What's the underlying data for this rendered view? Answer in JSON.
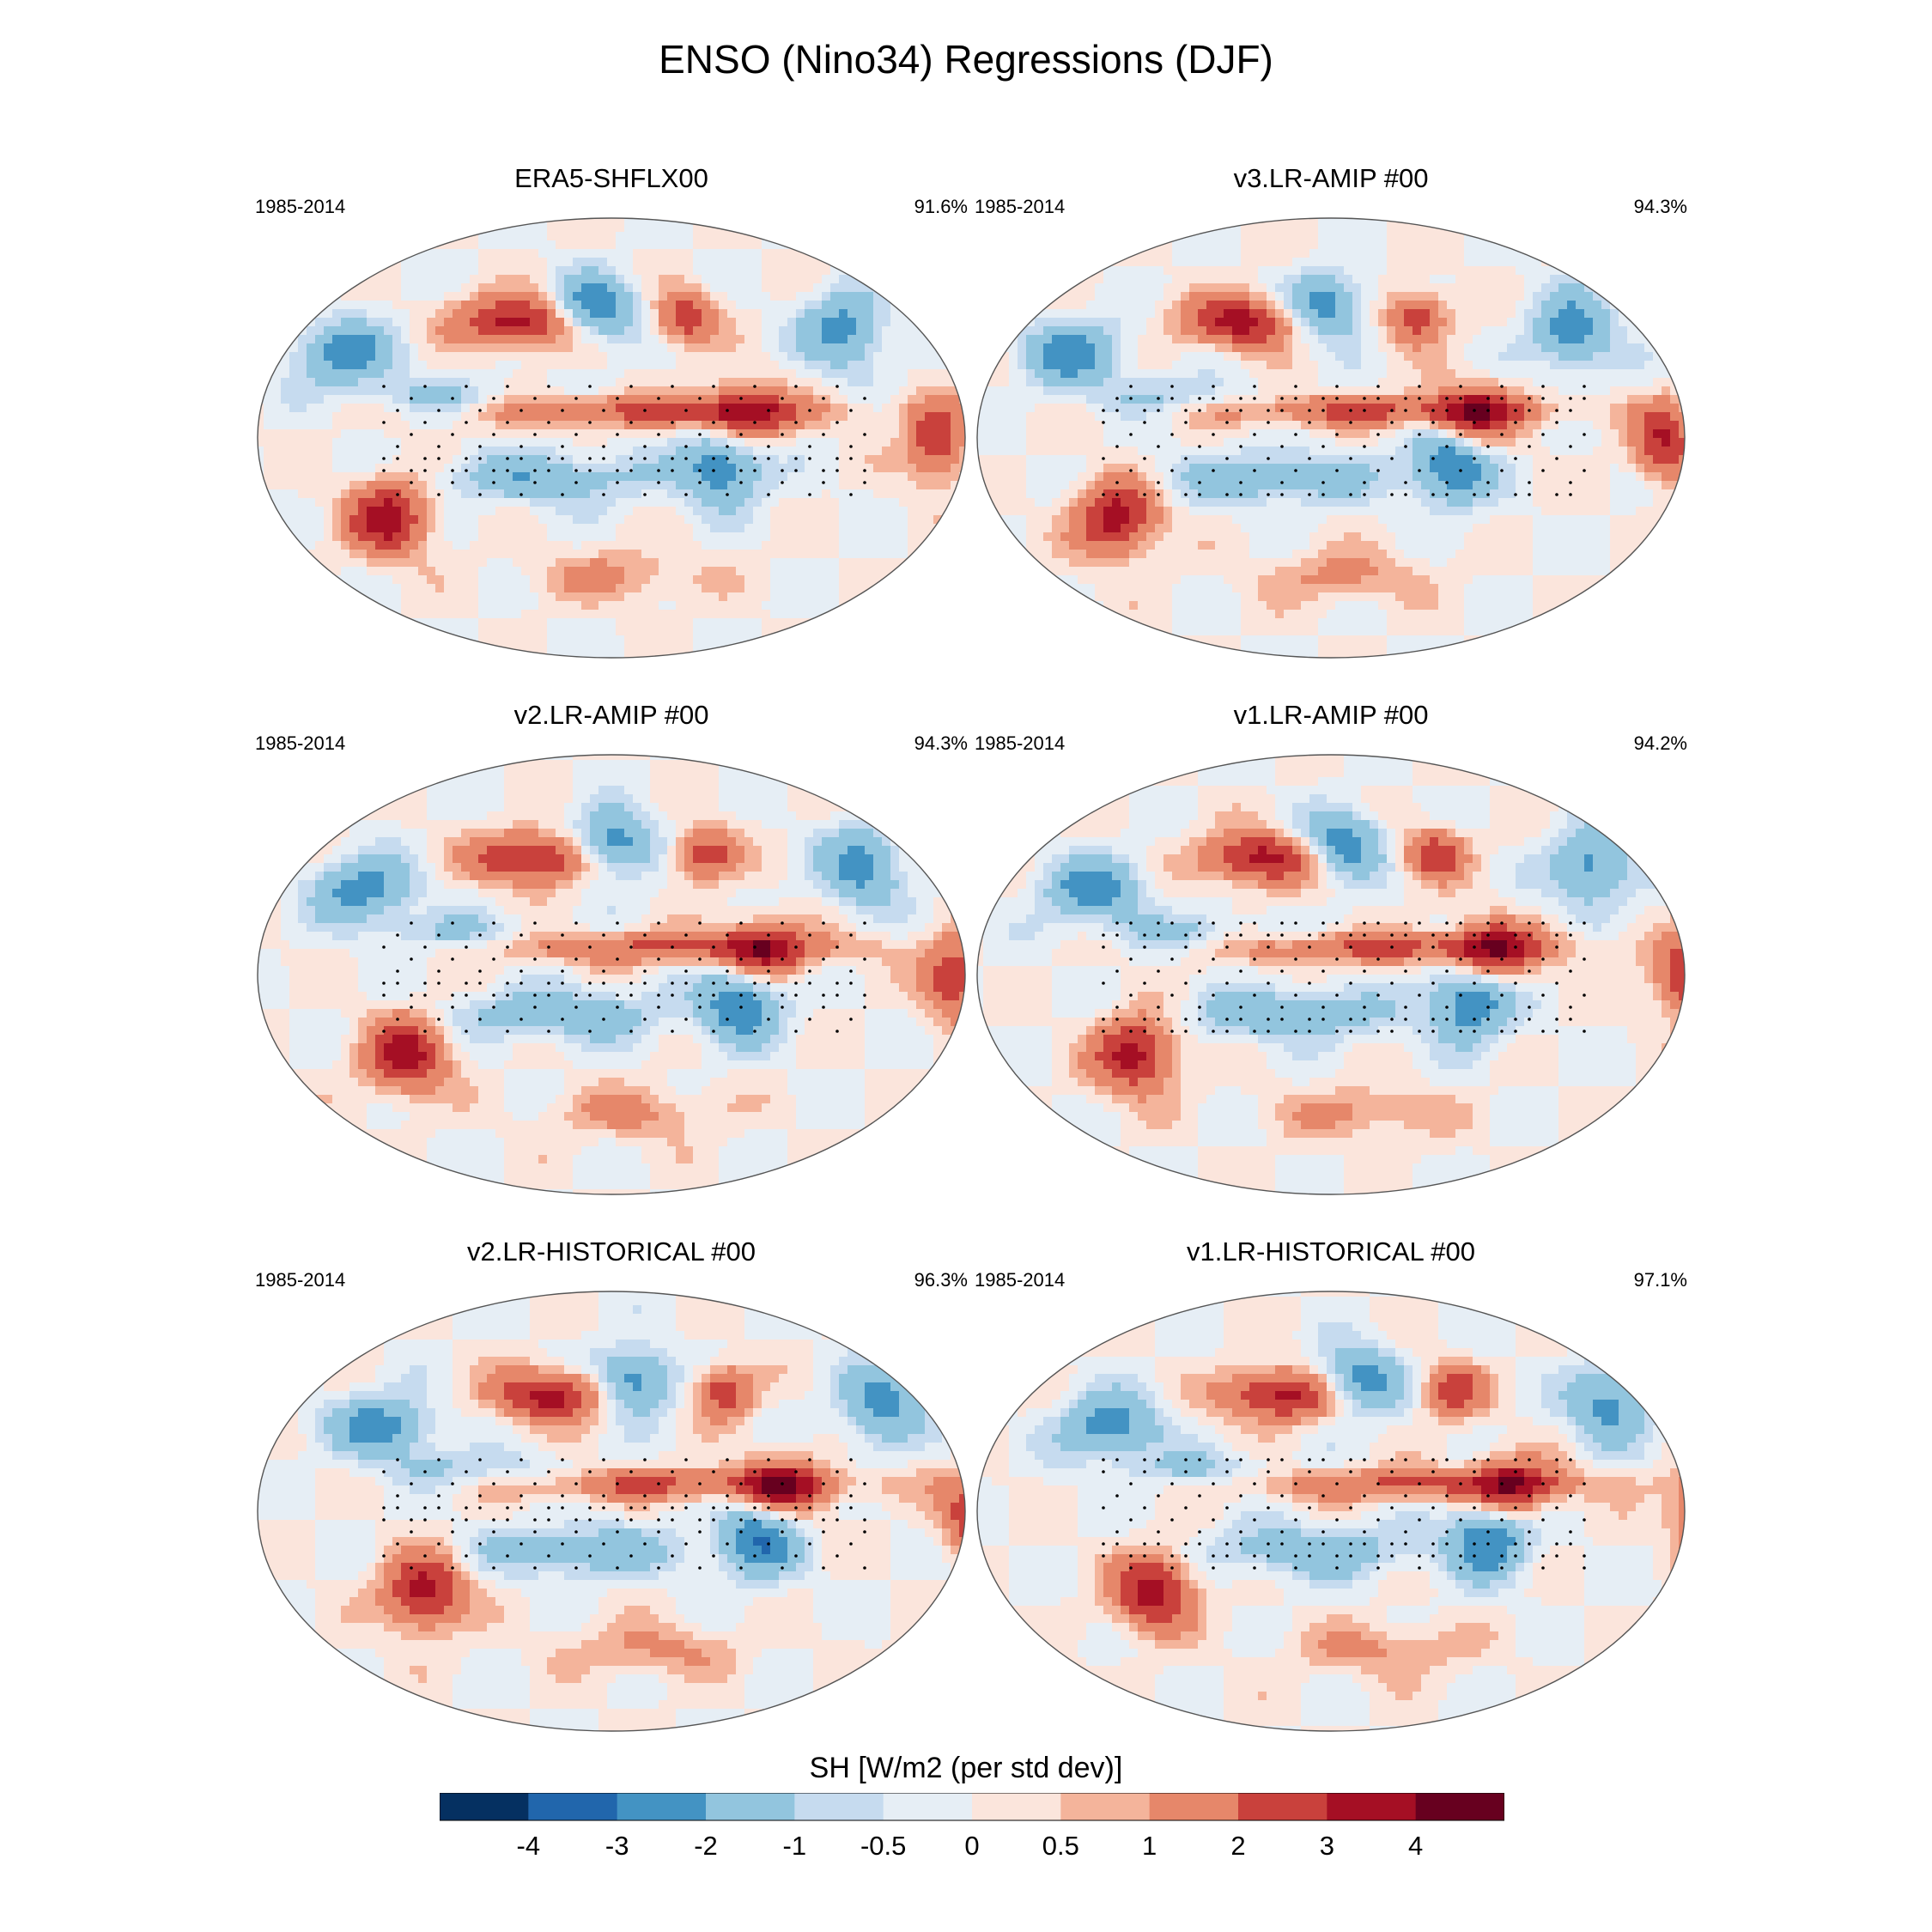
{
  "title": "ENSO (Nino34) Regressions (DJF)",
  "panels": [
    {
      "title": "ERA5-SHFLX00",
      "period": "1985-2014",
      "pct": "91.6%"
    },
    {
      "title": "v3.LR-AMIP  #00",
      "period": "1985-2014",
      "pct": "94.3%"
    },
    {
      "title": "v2.LR-AMIP  #00",
      "period": "1985-2014",
      "pct": "94.3%"
    },
    {
      "title": "v1.LR-AMIP  #00",
      "period": "1985-2014",
      "pct": "94.2%"
    },
    {
      "title": "v2.LR-HISTORICAL  #00",
      "period": "1985-2014",
      "pct": "96.3%"
    },
    {
      "title": "v1.LR-HISTORICAL  #00",
      "period": "1985-2014",
      "pct": "97.1%"
    }
  ],
  "chart_data": {
    "type": "heatmap",
    "title": "ENSO (Nino34) Regressions (DJF)",
    "projection": "Robinson (global map)",
    "variable_label": "SH [W/m2 (per std dev)]",
    "colorbar": {
      "ticks": [
        "-4",
        "-3",
        "-2",
        "-1",
        "-0.5",
        "0",
        "0.5",
        "1",
        "2",
        "3",
        "4"
      ],
      "colors": [
        "#053061",
        "#2166ac",
        "#4393c3",
        "#92c5de",
        "#c6dbef",
        "#e6eef5",
        "#fbe5dc",
        "#f4b49b",
        "#e6876a",
        "#c9413c",
        "#a50f24",
        "#67001f"
      ]
    }
  }
}
